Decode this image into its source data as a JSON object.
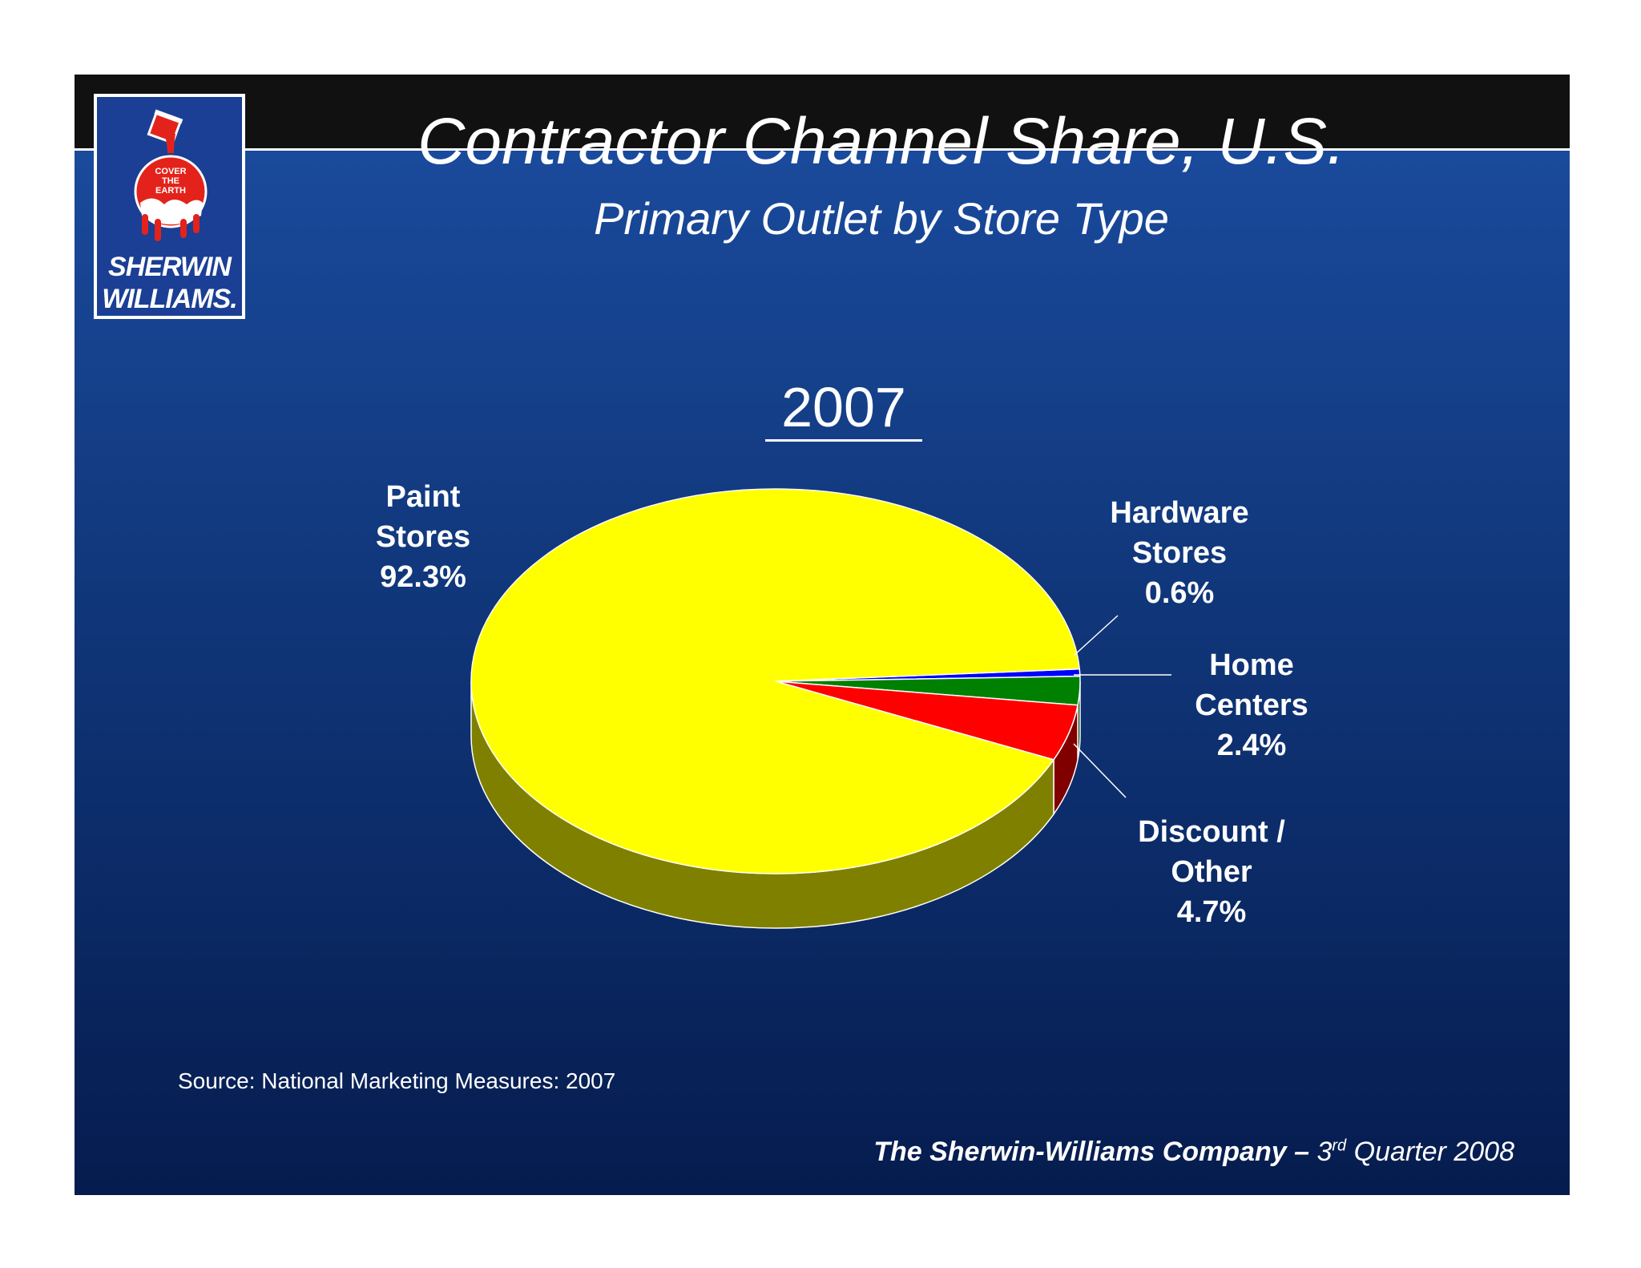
{
  "logo": {
    "badge_text": [
      "COVER",
      "THE",
      "EARTH"
    ],
    "wordmark_line1": "SHERWIN",
    "wordmark_line2": "WILLIAMS.",
    "brand_color": "#1b3f94",
    "logo_red": "#e3231b"
  },
  "header": {
    "title": "Contractor Channel Share, U.S.",
    "subtitle": "Primary Outlet by Store Type"
  },
  "chart_title": "2007",
  "chart_data": {
    "type": "pie",
    "title": "2007",
    "three_d": true,
    "slices": [
      {
        "label": "Paint Stores",
        "value": 92.3,
        "display": "92.3%",
        "color": "#ffff00",
        "side_color": "#808000",
        "label_lines": [
          "Paint",
          "Stores",
          "92.3%"
        ]
      },
      {
        "label": "Hardware Stores",
        "value": 0.6,
        "display": "0.6%",
        "color": "#0000ff",
        "side_color": "#000080",
        "label_lines": [
          "Hardware",
          "Stores",
          "0.6%"
        ]
      },
      {
        "label": "Home Centers",
        "value": 2.4,
        "display": "2.4%",
        "color": "#008000",
        "side_color": "#004000",
        "label_lines": [
          "Home",
          "Centers",
          "2.4%"
        ]
      },
      {
        "label": "Discount / Other",
        "value": 4.7,
        "display": "4.7%",
        "color": "#ff0000",
        "side_color": "#800000",
        "label_lines": [
          "Discount /",
          "Other",
          "4.7%"
        ]
      }
    ]
  },
  "source": "Source:  National Marketing Measures: 2007",
  "footer": {
    "company": "The Sherwin-Williams Company –",
    "quarter_num": "3",
    "quarter_sup": "rd",
    "quarter_rest": "Quarter 2008"
  },
  "colors": {
    "background_top": "#1a4a9c",
    "background_bottom": "#061c4e",
    "frame": "#111111"
  }
}
